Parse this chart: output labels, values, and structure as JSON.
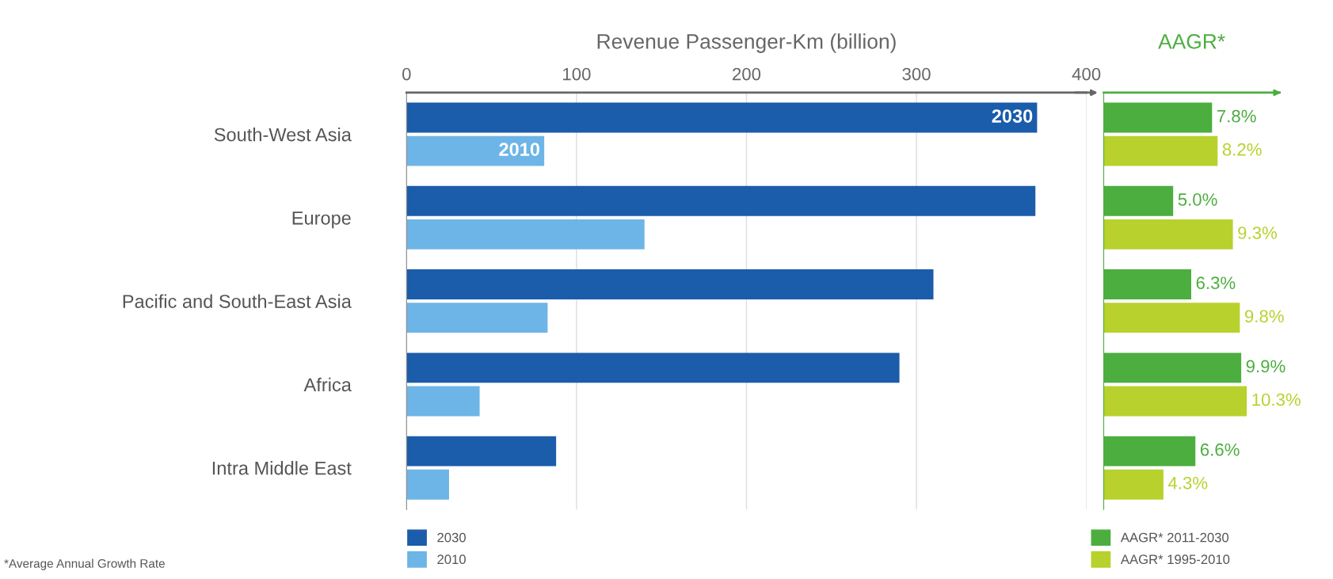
{
  "chart_data": [
    {
      "type": "bar",
      "orientation": "horizontal",
      "title": "Revenue Passenger-Km (billion)",
      "categories": [
        "South-West Asia",
        "Europe",
        "Pacific and South-East Asia",
        "Africa",
        "Intra Middle East"
      ],
      "series": [
        {
          "name": "2030",
          "color": "#1b5cab",
          "values": [
            371,
            370,
            310,
            290,
            88
          ]
        },
        {
          "name": "2010",
          "color": "#6db5e6",
          "values": [
            81,
            140,
            83,
            43,
            25
          ]
        }
      ],
      "xlim": [
        0,
        400
      ],
      "xticks": [
        0,
        100,
        200,
        300,
        400
      ],
      "grid": "x",
      "legend": "bottom left",
      "annotations": [
        {
          "text": "2030",
          "x": 371,
          "y": "South-West Asia"
        },
        {
          "text": "2010",
          "x": 81,
          "y": "South-West Asia"
        }
      ]
    },
    {
      "type": "bar",
      "orientation": "horizontal",
      "title": "AAGR*",
      "categories": [
        null,
        null,
        null,
        null,
        null
      ],
      "series": [
        {
          "name": "AAGR* 2011-2030",
          "color": "#4cae3f",
          "values": [
            7.8,
            5.0,
            6.3,
            9.9,
            6.6
          ],
          "value_labels": [
            "7.8%",
            "5.0%",
            "6.3%",
            "9.9%",
            "6.6%"
          ]
        },
        {
          "name": "AAGR* 1995-2010",
          "color": "#b8d12c",
          "values": [
            8.2,
            9.3,
            9.8,
            10.3,
            4.3
          ],
          "value_labels": [
            "8.2%",
            "9.3%",
            "9.8%",
            "10.3%",
            "4.3%"
          ]
        }
      ],
      "legend": "bottom",
      "annotations": [
        "*Average Annual Growth Rate"
      ]
    }
  ]
}
